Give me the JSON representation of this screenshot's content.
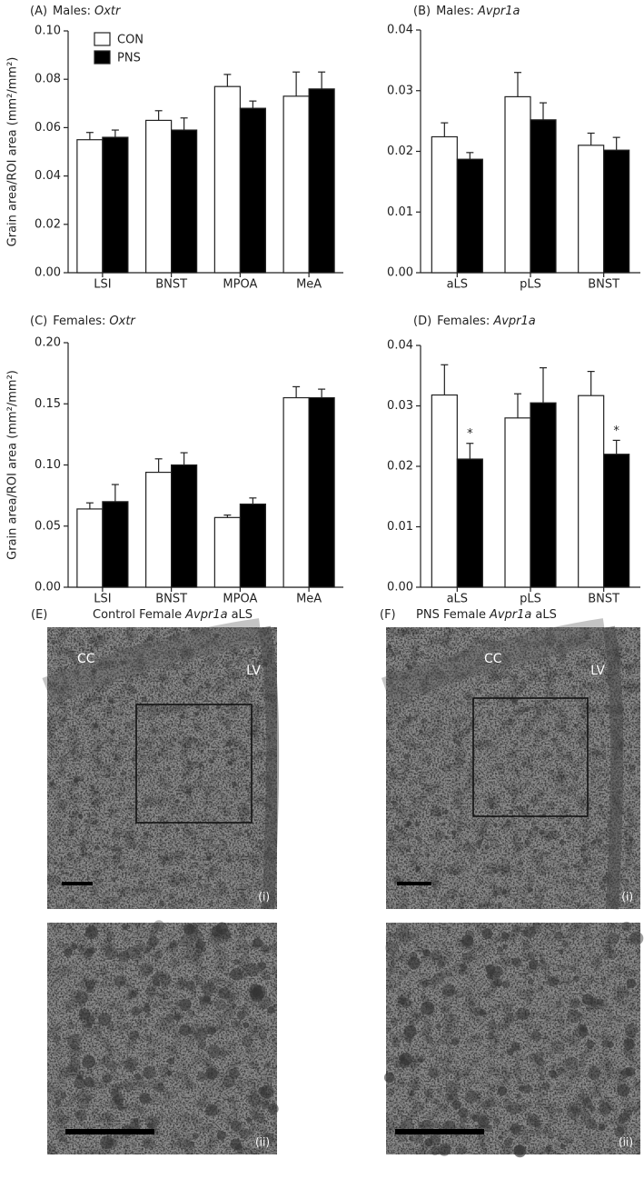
{
  "chart_data": [
    {
      "type": "bar",
      "panel": "(A)",
      "title": "Males:",
      "title_italic": "Oxtr",
      "ylabel": "Grain area/ROI area (mm²/mm²)",
      "legend": true,
      "categories": [
        "LSI",
        "BNST",
        "MPOA",
        "MeA"
      ],
      "series": [
        {
          "name": "CON",
          "color": "#ffffff",
          "values": [
            0.055,
            0.063,
            0.077,
            0.073
          ],
          "errors": [
            0.003,
            0.004,
            0.005,
            0.01
          ]
        },
        {
          "name": "PNS",
          "color": "#000000",
          "values": [
            0.056,
            0.059,
            0.068,
            0.076
          ],
          "errors": [
            0.003,
            0.005,
            0.003,
            0.007
          ]
        }
      ],
      "ylim": [
        0,
        0.1
      ],
      "yticks": [
        {
          "value": 0,
          "label": "0.00"
        },
        0.02,
        0.04,
        0.06,
        0.08,
        {
          "value": 0.1,
          "label": "0.10"
        }
      ]
    },
    {
      "type": "bar",
      "panel": "(B)",
      "title": "Males:",
      "title_italic": "Avpr1a",
      "legend": false,
      "categories": [
        "aLS",
        "pLS",
        "BNST"
      ],
      "series": [
        {
          "color": "#ffffff",
          "values": [
            0.0224,
            0.029,
            0.021
          ],
          "errors": [
            0.0023,
            0.004,
            0.002
          ]
        },
        {
          "color": "#000000",
          "values": [
            0.0187,
            0.0252,
            0.0202
          ],
          "errors": [
            0.0011,
            0.0028,
            0.0021
          ]
        }
      ],
      "ylim": [
        0,
        0.04
      ],
      "yticks": [
        {
          "value": 0,
          "label": "0.00"
        },
        0.01,
        0.02,
        0.03,
        0.04
      ]
    },
    {
      "type": "bar",
      "panel": "(C)",
      "title": "Females:",
      "title_italic": "Oxtr",
      "ylabel": "Grain area/ROI area (mm²/mm²)",
      "legend": false,
      "categories": [
        "LSI",
        "BNST",
        "MPOA",
        "MeA"
      ],
      "series": [
        {
          "color": "#ffffff",
          "values": [
            0.064,
            0.094,
            0.057,
            0.155
          ],
          "errors": [
            0.005,
            0.011,
            0.002,
            0.009
          ]
        },
        {
          "color": "#000000",
          "values": [
            0.07,
            0.1,
            0.068,
            0.155
          ],
          "errors": [
            0.014,
            0.01,
            0.005,
            0.007
          ]
        }
      ],
      "ylim": [
        0,
        0.2
      ],
      "yticks": [
        {
          "value": 0,
          "label": "0.00"
        },
        0.05,
        {
          "value": 0.1,
          "label": "0.10"
        },
        0.15,
        {
          "value": 0.2,
          "label": "0.20"
        }
      ]
    },
    {
      "type": "bar",
      "panel": "(D)",
      "title": "Females:",
      "title_italic": "Avpr1a",
      "legend": false,
      "categories": [
        "aLS",
        "pLS",
        "BNST"
      ],
      "series": [
        {
          "color": "#ffffff",
          "values": [
            0.0318,
            0.028,
            0.0317
          ],
          "errors": [
            0.005,
            0.004,
            0.004
          ]
        },
        {
          "color": "#000000",
          "values": [
            0.0212,
            0.0305,
            0.022
          ],
          "errors": [
            0.0026,
            0.0058,
            0.0023
          ],
          "significance": [
            "*",
            null,
            "*"
          ]
        }
      ],
      "ylim": [
        0,
        0.04
      ],
      "yticks": [
        {
          "value": 0,
          "label": "0.00"
        },
        0.01,
        0.02,
        0.03,
        0.04
      ]
    }
  ],
  "images": [
    {
      "panel": "(E)",
      "caption": "Control Female",
      "caption_italic": "Avpr1a",
      "caption_end": "aLS",
      "labels": [
        "CC",
        "LV"
      ],
      "subpanels": [
        "(i)",
        "(ii)"
      ]
    },
    {
      "panel": "(F)",
      "caption": "PNS Female",
      "caption_italic": "Avpr1a",
      "caption_end": "aLS",
      "labels": [
        "CC",
        "LV"
      ],
      "subpanels": [
        "(i)",
        "(ii)"
      ]
    }
  ]
}
